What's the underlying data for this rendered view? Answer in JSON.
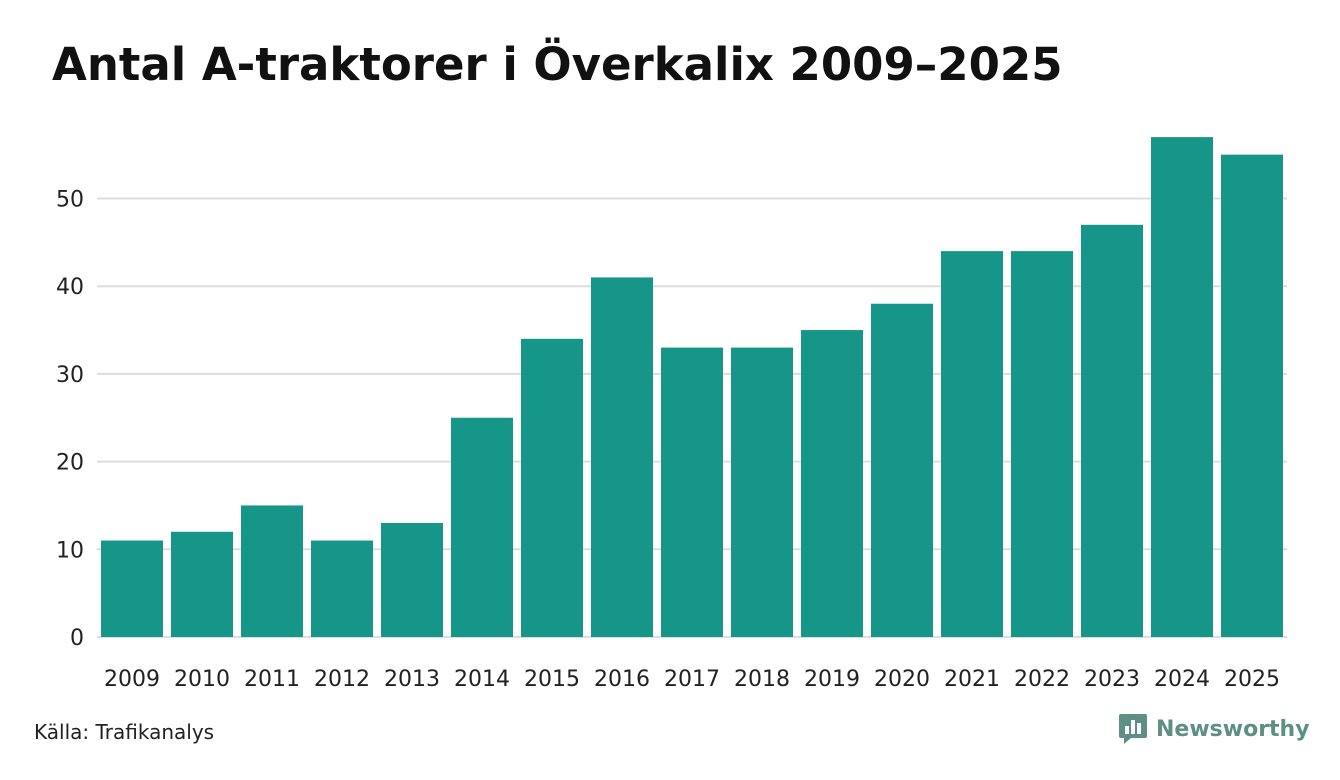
{
  "title": "Antal A-traktorer i Överkalix 2009–2025",
  "source": "Källa: Trafikanalys",
  "brand": {
    "name": "Newsworthy",
    "icon": "newsworthy-logo-icon",
    "color": "#5e8f86"
  },
  "colors": {
    "bar": "#169689",
    "grid": "#dddddd"
  },
  "chart_data": {
    "type": "bar",
    "title": "Antal A-traktorer i Överkalix 2009–2025",
    "xlabel": "",
    "ylabel": "",
    "categories": [
      "2009",
      "2010",
      "2011",
      "2012",
      "2013",
      "2014",
      "2015",
      "2016",
      "2017",
      "2018",
      "2019",
      "2020",
      "2021",
      "2022",
      "2023",
      "2024",
      "2025"
    ],
    "values": [
      11,
      12,
      15,
      11,
      13,
      25,
      34,
      41,
      33,
      33,
      35,
      38,
      44,
      44,
      47,
      57,
      55
    ],
    "ylim": [
      0,
      57
    ],
    "yticks": [
      0,
      10,
      20,
      30,
      40,
      50
    ],
    "grid": true,
    "legend": "none"
  }
}
